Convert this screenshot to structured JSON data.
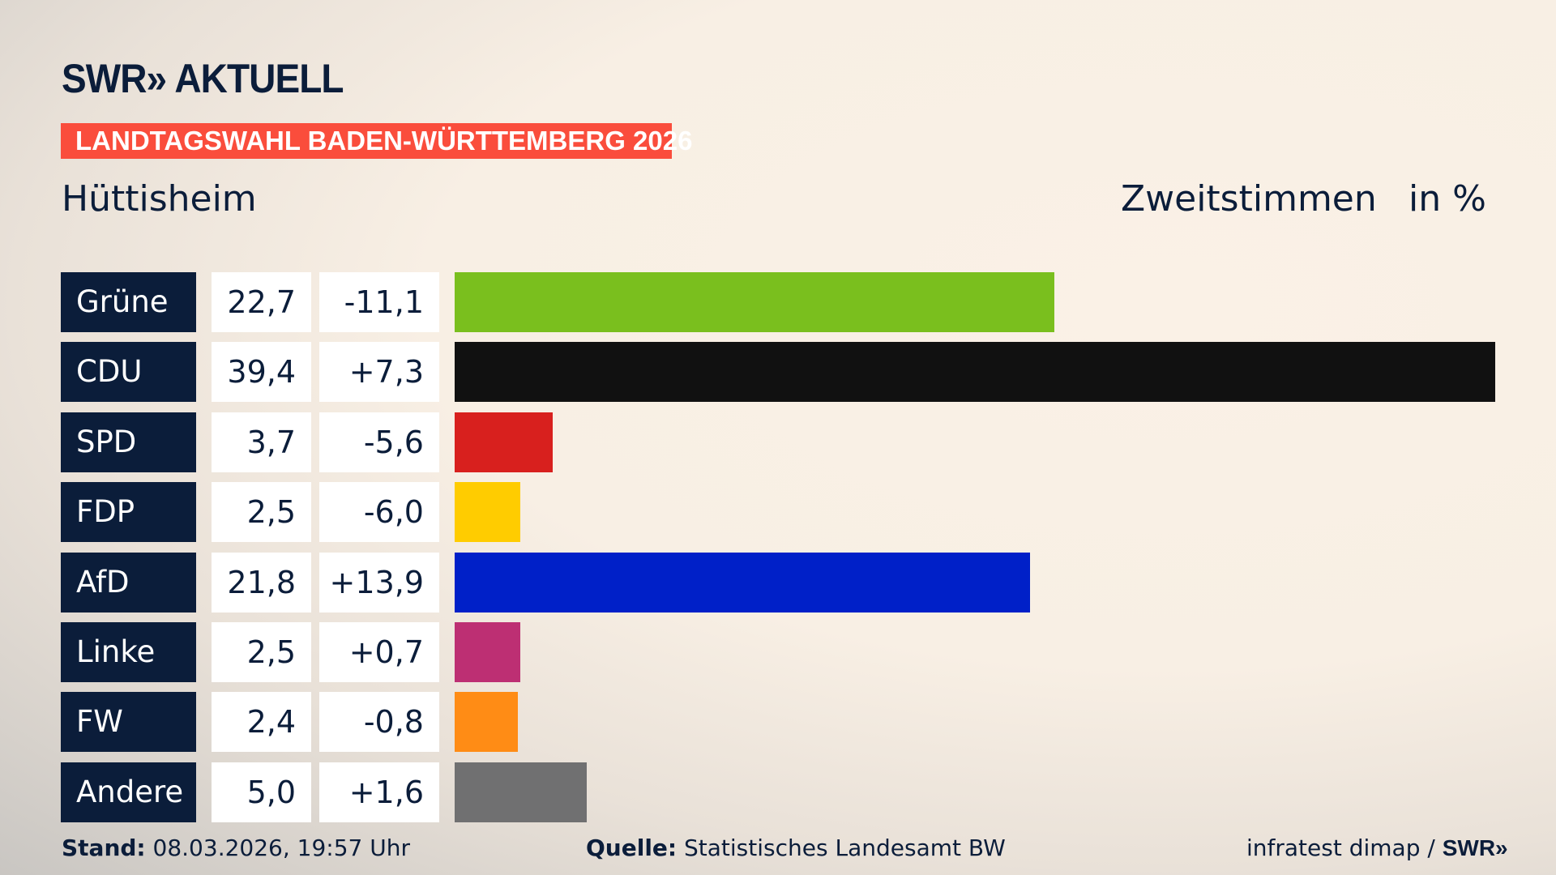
{
  "header": {
    "logo": "SWR» AKTUELL",
    "banner": "LANDTAGSWAHL BADEN-WÜRTTEMBERG 2026",
    "place": "Hüttisheim",
    "metric": "Zweitstimmen",
    "unit": "in %"
  },
  "chart_data": {
    "type": "bar",
    "orientation": "horizontal",
    "title": "Zweitstimmen",
    "unit": "in %",
    "categories": [
      "Grüne",
      "CDU",
      "SPD",
      "FDP",
      "AfD",
      "Linke",
      "FW",
      "Andere"
    ],
    "values": [
      22.7,
      39.4,
      3.7,
      2.5,
      21.8,
      2.5,
      2.4,
      5.0
    ],
    "value_labels": [
      "22,7",
      "39,4",
      "3,7",
      "2,5",
      "21,8",
      "2,5",
      "2,4",
      "5,0"
    ],
    "changes": [
      -11.1,
      7.3,
      -5.6,
      -6.0,
      13.9,
      0.7,
      -0.8,
      1.6
    ],
    "change_labels": [
      "-11,1",
      "+7,3",
      "-5,6",
      "-6,0",
      "+13,9",
      "+0,7",
      "-0,8",
      "+1,6"
    ],
    "colors": [
      "#7abf1e",
      "#111111",
      "#d8201e",
      "#ffcc00",
      "#0020c8",
      "#bd2f73",
      "#ff8c15",
      "#707071"
    ],
    "grid": false
  },
  "footer": {
    "stand_label": "Stand:",
    "stand_value": "08.03.2026, 19:57 Uhr",
    "source_label": "Quelle:",
    "source_value": "Statistisches Landesamt BW",
    "credit": "infratest dimap / ",
    "credit_logo": "SWR»"
  }
}
